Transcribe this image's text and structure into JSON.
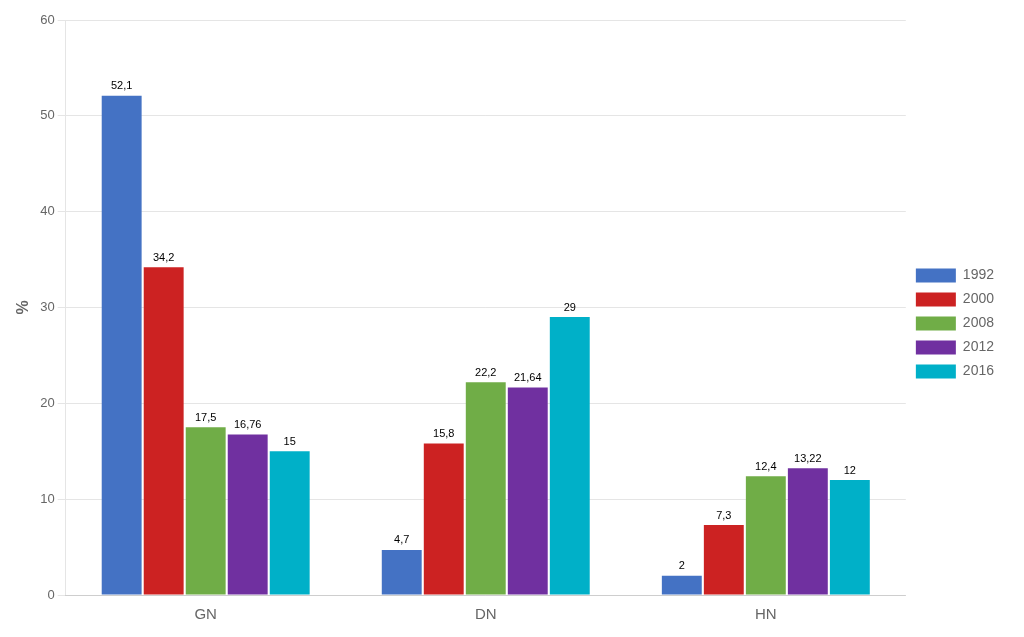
{
  "chart_data": {
    "type": "bar",
    "ylabel": "%",
    "categories": [
      "GN",
      "DN",
      "HN"
    ],
    "series": [
      {
        "name": "1992",
        "color": "#4472C4",
        "values": [
          52.1,
          4.7,
          2
        ],
        "value_labels": [
          "52,1",
          "4,7",
          "2"
        ]
      },
      {
        "name": "2000",
        "color": "#CC2222",
        "values": [
          34.2,
          15.8,
          7.3
        ],
        "value_labels": [
          "34,2",
          "15,8",
          "7,3"
        ]
      },
      {
        "name": "2008",
        "color": "#70AD47",
        "values": [
          17.5,
          22.2,
          12.4
        ],
        "value_labels": [
          "17,5",
          "22,2",
          "12,4"
        ]
      },
      {
        "name": "2012",
        "color": "#7030A0",
        "values": [
          16.76,
          21.64,
          13.22
        ],
        "value_labels": [
          "16,76",
          "21,64",
          "13,22"
        ]
      },
      {
        "name": "2016",
        "color": "#00B0C8",
        "values": [
          15,
          29,
          12
        ],
        "value_labels": [
          "15",
          "29",
          "12"
        ]
      }
    ],
    "ylim": [
      0,
      60
    ],
    "yticks": [
      0,
      10,
      20,
      30,
      40,
      50,
      60
    ],
    "grid": true,
    "legend": "right",
    "data_labels": true
  }
}
